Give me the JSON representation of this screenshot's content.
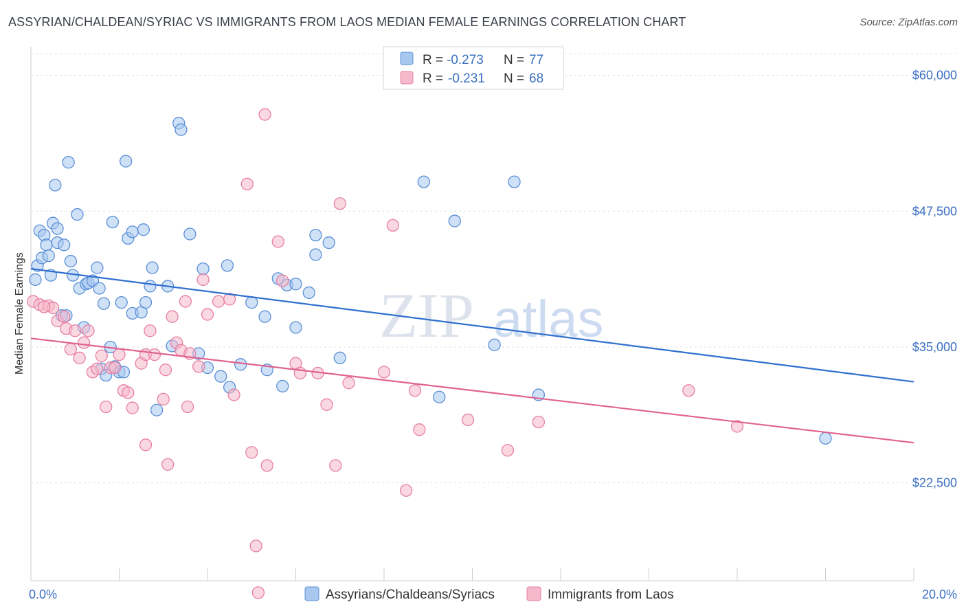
{
  "title": "ASSYRIAN/CHALDEAN/SYRIAC VS IMMIGRANTS FROM LAOS MEDIAN FEMALE EARNINGS CORRELATION CHART",
  "source": "Source: ZipAtlas.com",
  "watermark": {
    "zip": "ZIP",
    "atlas": "atlas"
  },
  "colors": {
    "blue_fill": "#a8c8f0",
    "blue_stroke": "#5b8fd6",
    "blue_line": "#2f6fce",
    "pink_fill": "#f6b8cb",
    "pink_stroke": "#e77fa2",
    "pink_line": "#e0628f",
    "grid": "#d9dde3",
    "axis_text": "#3b6fc2"
  },
  "legend": {
    "rows": [
      {
        "r_label": "R =",
        "r_value": "-0.273",
        "n_label": "N =",
        "n_value": "77"
      },
      {
        "r_label": "R =",
        "r_value": "-0.231",
        "n_label": "N =",
        "n_value": "68"
      }
    ]
  },
  "chart_data": {
    "type": "scatter",
    "title": "ASSYRIAN/CHALDEAN/SYRIAC VS IMMIGRANTS FROM LAOS MEDIAN FEMALE EARNINGS CORRELATION CHART",
    "xlabel": "",
    "ylabel": "Median Female Earnings",
    "xlim": [
      0,
      20
    ],
    "ylim": [
      13500,
      62000
    ],
    "x_tick_labels": [
      "0.0%",
      "20.0%"
    ],
    "y_ticks": [
      22500,
      35000,
      47500,
      60000
    ],
    "y_tick_labels": [
      "$22,500",
      "$35,000",
      "$47,500",
      "$60,000"
    ],
    "grid": true,
    "legend_position": "bottom",
    "series": [
      {
        "name": "Assyrians/Chaldeans/Syriacs",
        "color": "#5b8fd6",
        "trend": {
          "x": [
            0,
            20
          ],
          "y": [
            42200,
            31800
          ]
        },
        "points": [
          [
            0.1,
            41200
          ],
          [
            0.15,
            42500
          ],
          [
            0.2,
            45700
          ],
          [
            0.25,
            43200
          ],
          [
            0.3,
            45300
          ],
          [
            0.35,
            44400
          ],
          [
            0.4,
            43400
          ],
          [
            0.45,
            41600
          ],
          [
            0.5,
            46400
          ],
          [
            0.55,
            49900
          ],
          [
            0.6,
            44600
          ],
          [
            0.7,
            37900
          ],
          [
            0.75,
            44400
          ],
          [
            0.8,
            37900
          ],
          [
            0.85,
            52000
          ],
          [
            0.9,
            42900
          ],
          [
            0.95,
            41600
          ],
          [
            1.05,
            47200
          ],
          [
            1.1,
            40400
          ],
          [
            1.2,
            36800
          ],
          [
            1.25,
            40800
          ],
          [
            1.3,
            40900
          ],
          [
            1.4,
            41100
          ],
          [
            1.5,
            42300
          ],
          [
            1.55,
            40400
          ],
          [
            1.6,
            33000
          ],
          [
            1.65,
            39000
          ],
          [
            1.7,
            32400
          ],
          [
            1.8,
            35000
          ],
          [
            1.85,
            46500
          ],
          [
            1.9,
            33200
          ],
          [
            2.0,
            32700
          ],
          [
            2.05,
            39100
          ],
          [
            2.1,
            32700
          ],
          [
            2.15,
            52100
          ],
          [
            2.2,
            45000
          ],
          [
            2.3,
            38100
          ],
          [
            2.3,
            45600
          ],
          [
            2.5,
            38200
          ],
          [
            2.55,
            45800
          ],
          [
            2.6,
            39100
          ],
          [
            2.7,
            40600
          ],
          [
            2.75,
            42300
          ],
          [
            2.85,
            29200
          ],
          [
            3.1,
            40600
          ],
          [
            3.2,
            35100
          ],
          [
            3.35,
            55600
          ],
          [
            3.4,
            55000
          ],
          [
            3.6,
            45400
          ],
          [
            3.8,
            34400
          ],
          [
            3.9,
            42200
          ],
          [
            4.0,
            33100
          ],
          [
            4.3,
            32300
          ],
          [
            4.45,
            42500
          ],
          [
            4.5,
            31300
          ],
          [
            4.75,
            33400
          ],
          [
            5.0,
            39100
          ],
          [
            5.3,
            37800
          ],
          [
            5.35,
            32900
          ],
          [
            5.6,
            41300
          ],
          [
            5.7,
            31400
          ],
          [
            5.8,
            40700
          ],
          [
            6.0,
            36800
          ],
          [
            6.0,
            40800
          ],
          [
            6.3,
            40000
          ],
          [
            6.45,
            43500
          ],
          [
            6.45,
            45300
          ],
          [
            6.75,
            44600
          ],
          [
            7.0,
            34000
          ],
          [
            8.9,
            50200
          ],
          [
            9.25,
            30400
          ],
          [
            9.6,
            46600
          ],
          [
            10.5,
            35200
          ],
          [
            10.95,
            50200
          ],
          [
            11.5,
            30600
          ],
          [
            18.0,
            26600
          ],
          [
            0.6,
            45900
          ]
        ]
      },
      {
        "name": "Immigrants from Laos",
        "color": "#e77fa2",
        "trend": {
          "x": [
            0,
            20
          ],
          "y": [
            35800,
            26200
          ]
        },
        "points": [
          [
            0.05,
            39200
          ],
          [
            0.2,
            38900
          ],
          [
            0.4,
            38800
          ],
          [
            0.5,
            38600
          ],
          [
            0.6,
            37400
          ],
          [
            0.75,
            37800
          ],
          [
            0.8,
            36700
          ],
          [
            0.9,
            34800
          ],
          [
            1.0,
            36500
          ],
          [
            1.1,
            34000
          ],
          [
            1.2,
            35400
          ],
          [
            1.3,
            36500
          ],
          [
            1.4,
            32700
          ],
          [
            1.5,
            33000
          ],
          [
            1.6,
            34200
          ],
          [
            1.7,
            29500
          ],
          [
            1.8,
            33100
          ],
          [
            1.9,
            33100
          ],
          [
            2.0,
            34300
          ],
          [
            2.1,
            31000
          ],
          [
            2.2,
            30800
          ],
          [
            2.3,
            29400
          ],
          [
            2.5,
            33500
          ],
          [
            2.6,
            34300
          ],
          [
            2.6,
            26000
          ],
          [
            2.7,
            36500
          ],
          [
            2.8,
            34300
          ],
          [
            3.0,
            30200
          ],
          [
            3.05,
            32900
          ],
          [
            3.1,
            24200
          ],
          [
            3.2,
            37800
          ],
          [
            3.3,
            35400
          ],
          [
            3.4,
            34700
          ],
          [
            3.5,
            39200
          ],
          [
            3.55,
            29500
          ],
          [
            3.6,
            34400
          ],
          [
            3.8,
            33200
          ],
          [
            3.9,
            41200
          ],
          [
            4.0,
            38000
          ],
          [
            4.25,
            39200
          ],
          [
            4.5,
            39400
          ],
          [
            4.6,
            30600
          ],
          [
            4.9,
            50000
          ],
          [
            5.0,
            25300
          ],
          [
            5.1,
            16700
          ],
          [
            5.15,
            12400
          ],
          [
            5.3,
            56400
          ],
          [
            5.35,
            24100
          ],
          [
            5.6,
            44700
          ],
          [
            5.7,
            41100
          ],
          [
            6.0,
            33500
          ],
          [
            6.1,
            32600
          ],
          [
            6.5,
            32600
          ],
          [
            6.7,
            29700
          ],
          [
            6.9,
            24100
          ],
          [
            7.0,
            48200
          ],
          [
            7.2,
            31700
          ],
          [
            8.0,
            32700
          ],
          [
            8.2,
            46200
          ],
          [
            8.5,
            21800
          ],
          [
            8.7,
            31000
          ],
          [
            8.8,
            27400
          ],
          [
            9.9,
            28300
          ],
          [
            10.8,
            25500
          ],
          [
            11.5,
            28100
          ],
          [
            14.9,
            31000
          ],
          [
            16.0,
            27700
          ],
          [
            0.3,
            38700
          ]
        ]
      }
    ]
  }
}
